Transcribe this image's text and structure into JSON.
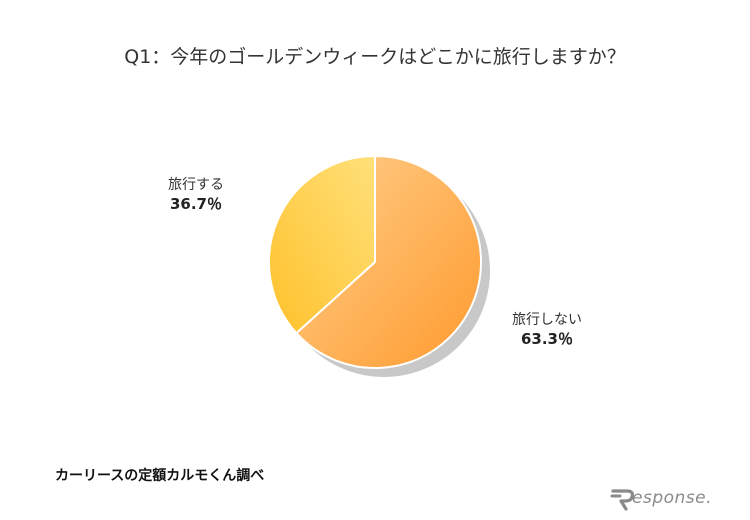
{
  "chart_data": {
    "type": "pie",
    "title": "Q1：今年のゴールデンウィークはどこかに旅行しますか？",
    "slices": [
      {
        "label": "旅行しない",
        "value": 63.3,
        "display": "63.3％",
        "color_start": "#ffcf8c",
        "color_end": "#ff9a2e"
      },
      {
        "label": "旅行する",
        "value": 36.7,
        "display": "36.7％",
        "color_start": "#ffe07a",
        "color_end": "#ffc12b"
      }
    ],
    "start_angle_deg": 0,
    "direction": "clockwise",
    "shadow_color": "#c8c8c8",
    "separator_color": "#ffffff"
  },
  "source": "カーリースの定額カルモくん調べ",
  "watermark": {
    "text": "esponse.",
    "icon": "response-logo-icon"
  }
}
